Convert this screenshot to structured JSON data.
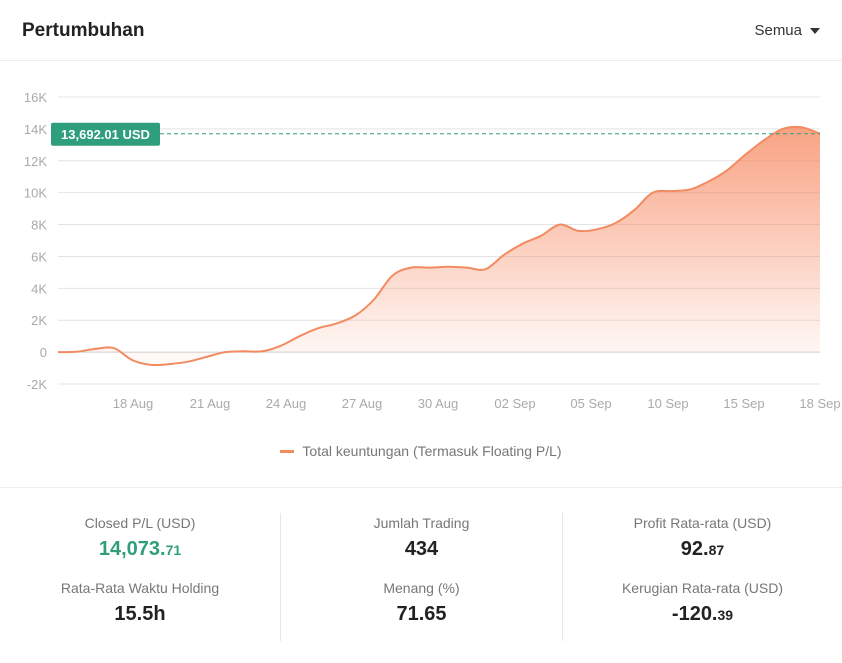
{
  "header": {
    "title": "Pertumbuhan",
    "filter_label": "Semua"
  },
  "colors": {
    "line": "#f28b61",
    "fill": "#f6845a",
    "highlight": "#2e9e7c"
  },
  "chart_data": {
    "type": "area",
    "title": "",
    "xlabel": "",
    "ylabel": "",
    "ylim": [
      -2000,
      16000
    ],
    "y_ticks": [
      -2000,
      0,
      2000,
      4000,
      6000,
      8000,
      10000,
      12000,
      14000,
      16000
    ],
    "y_tick_labels": [
      "-2K",
      "0",
      "2K",
      "4K",
      "6K",
      "8K",
      "10K",
      "12K",
      "14K",
      "16K"
    ],
    "x_ticks": [
      "18 Aug",
      "21 Aug",
      "24 Aug",
      "27 Aug",
      "30 Aug",
      "02 Sep",
      "05 Sep",
      "10 Sep",
      "15 Sep",
      "18 Sep"
    ],
    "grid": true,
    "legend": "bottom",
    "current_value": 13692.01,
    "current_label": "13,692.01 USD",
    "series": [
      {
        "name": "Total keuntungan (Termasuk Floating P/L)",
        "values": [
          0,
          20,
          200,
          250,
          -500,
          -800,
          -750,
          -600,
          -300,
          0,
          50,
          50,
          400,
          1000,
          1500,
          1800,
          2300,
          3300,
          4800,
          5300,
          5300,
          5350,
          5300,
          5200,
          6100,
          6800,
          7300,
          8000,
          7600,
          7700,
          8100,
          8900,
          10000,
          10100,
          10200,
          10700,
          11400,
          12400,
          13300,
          14000,
          14100,
          13700
        ]
      }
    ]
  },
  "stats": {
    "closed_pl": {
      "label": "Closed P/L (USD)",
      "int": "14,073.",
      "frac": "71"
    },
    "holding": {
      "label": "Rata-Rata Waktu Holding",
      "value": "15.5h"
    },
    "trades": {
      "label": "Jumlah Trading",
      "value": "434"
    },
    "win": {
      "label": "Menang (%)",
      "value": "71.65"
    },
    "avg_profit": {
      "label": "Profit Rata-rata (USD)",
      "int": "92.",
      "frac": "87"
    },
    "avg_loss": {
      "label": "Kerugian Rata-rata (USD)",
      "int": "-120.",
      "frac": "39"
    }
  }
}
